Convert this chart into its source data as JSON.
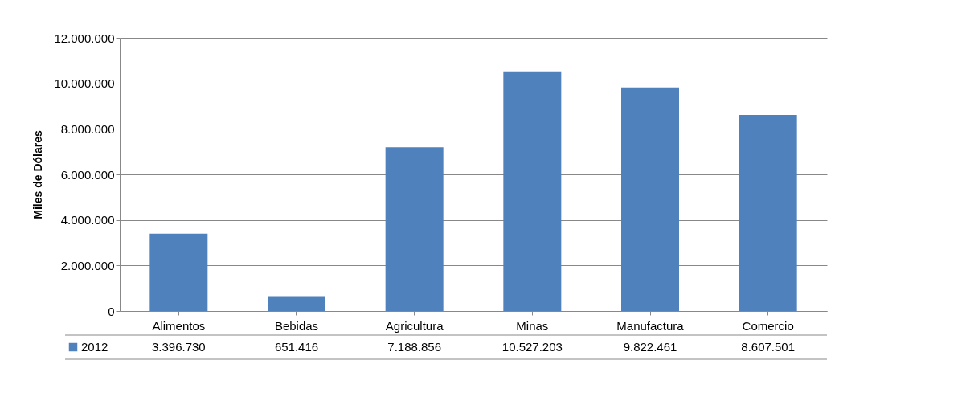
{
  "chart_data": {
    "type": "bar",
    "ylabel": "Miles de Dólares",
    "categories": [
      "Alimentos",
      "Bebidas",
      "Agricultura",
      "Minas",
      "Manufactura",
      "Comercio"
    ],
    "series": [
      {
        "name": "2012",
        "color": "#4f81bd",
        "values": [
          3396730,
          651416,
          7188856,
          10527203,
          9822461,
          8607501
        ],
        "value_labels": [
          "3.396.730",
          "651.416",
          "7.188.856",
          "10.527.203",
          "9.822.461",
          "8.607.501"
        ]
      }
    ],
    "ylim": [
      0,
      12000000
    ],
    "yticks": [
      {
        "value": 0,
        "label": "0"
      },
      {
        "value": 2000000,
        "label": "2.000.000"
      },
      {
        "value": 4000000,
        "label": "4.000.000"
      },
      {
        "value": 6000000,
        "label": "6.000.000"
      },
      {
        "value": 8000000,
        "label": "8.000.000"
      },
      {
        "value": 10000000,
        "label": "10.000.000"
      },
      {
        "value": 12000000,
        "label": "12.000.000"
      }
    ],
    "grid": "y",
    "legend": "bottom left"
  }
}
